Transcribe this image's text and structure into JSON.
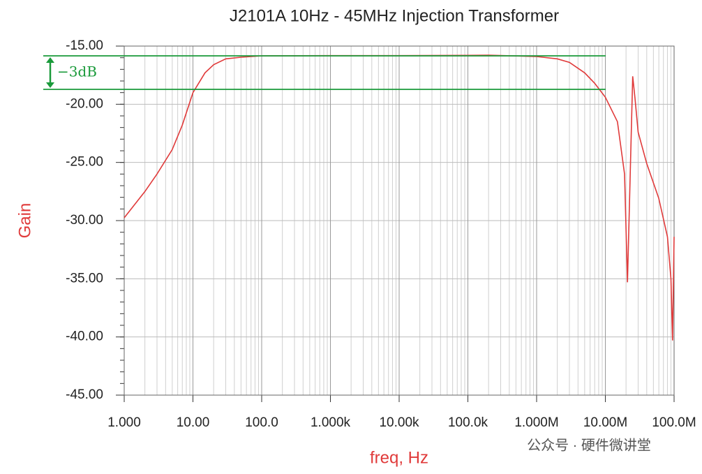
{
  "chart_data": {
    "type": "line",
    "title": "J2101A 10Hz - 45MHz Injection Transformer",
    "x_label": "freq, Hz",
    "y_label": "Gain",
    "color": "#e03a3a",
    "log_x": true,
    "grid": true,
    "x": [
      1,
      2,
      3,
      5,
      7,
      10,
      15,
      20,
      30,
      50,
      100,
      1000,
      10000,
      100000,
      200000,
      1000000,
      2000000,
      3000000,
      5000000,
      7000000,
      10000000,
      15000000,
      19000000,
      21000000,
      25000000,
      27000000,
      30000000,
      40000000,
      60000000,
      80000000,
      90000000,
      95000000,
      100000000
    ],
    "values": [
      -29.76,
      -27.5,
      -26,
      -23.9,
      -21.8,
      -19.0,
      -17.3,
      -16.6,
      -16.1,
      -15.96,
      -15.84,
      -15.82,
      -15.82,
      -15.8,
      -15.78,
      -15.9,
      -16.1,
      -16.4,
      -17.3,
      -18.2,
      -19.4,
      -21.5,
      -26,
      -35.3,
      -17.6,
      -19.5,
      -22.4,
      -25.1,
      -28.1,
      -31.4,
      -35,
      -40.3,
      -31.4
    ],
    "xlim": [
      1,
      100000000
    ],
    "xticks": [
      {
        "value": 1,
        "label": "1.000"
      },
      {
        "value": 10,
        "label": "10.00"
      },
      {
        "value": 100,
        "label": "100.0"
      },
      {
        "value": 1000,
        "label": "1.000k"
      },
      {
        "value": 10000,
        "label": "10.00k"
      },
      {
        "value": 100000,
        "label": "100.0k"
      },
      {
        "value": 1000000,
        "label": "1.000M"
      },
      {
        "value": 10000000,
        "label": "10.00M"
      },
      {
        "value": 100000000,
        "label": "100.0M"
      }
    ],
    "ylim": [
      -45,
      -15
    ],
    "yticks": [
      {
        "value": -45,
        "label": "-45.00"
      },
      {
        "value": -40,
        "label": "-40.00"
      },
      {
        "value": -35,
        "label": "-35.00"
      },
      {
        "value": -30,
        "label": "-30.00"
      },
      {
        "value": -25,
        "label": "-25.00"
      },
      {
        "value": -20,
        "label": "-20.00"
      },
      {
        "value": -15,
        "label": "-15.00"
      }
    ],
    "annotation": {
      "text": "−3dB",
      "lines": [
        -15.84,
        -18.72
      ],
      "color": "#1a9a3a"
    },
    "watermark": "公众号 · 硬件微讲堂"
  }
}
